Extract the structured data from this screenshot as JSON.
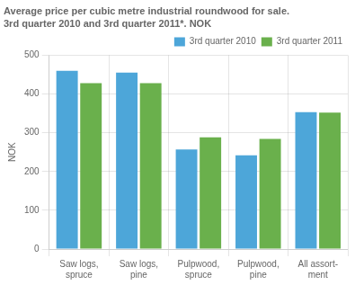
{
  "chart_data": {
    "type": "bar",
    "title": "Average price per cubic metre industrial roundwood for sale.",
    "subtitle": "3rd quarter 2010 and 3rd quarter 2011*. NOK",
    "ylabel": "NOK",
    "categories": [
      "Saw logs,\nspruce",
      "Saw logs,\npine",
      "Pulpwood,\nspruce",
      "Pulpwood,\npine",
      "All assort-\nment"
    ],
    "series": [
      {
        "name": "3rd quarter 2010",
        "color": "#4da6d9",
        "values": [
          460,
          455,
          257,
          242,
          353
        ]
      },
      {
        "name": "3rd quarter 2011",
        "color": "#6ab04c",
        "values": [
          428,
          428,
          288,
          284,
          352
        ]
      }
    ],
    "ylim": [
      0,
      500
    ],
    "yticks": [
      0,
      100,
      200,
      300,
      400,
      500
    ],
    "grid": true,
    "legend": "upper right"
  }
}
